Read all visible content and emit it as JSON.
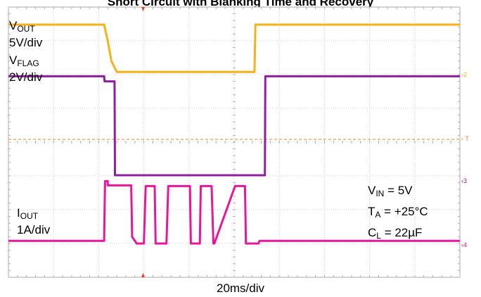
{
  "chart_data": {
    "type": "line",
    "title": "Short Circuit with Blanking Time and Recovery",
    "xlabel": "20ms/div",
    "channels": [
      {
        "name_main": "V",
        "name_sub": "OUT",
        "scale": "5V/div",
        "color": "#f5b21a",
        "marker": "2"
      },
      {
        "name_main": "V",
        "name_sub": "FLAG",
        "scale": "2V/div",
        "color": "#8e1f9e",
        "marker": "3"
      },
      {
        "name_main": "I",
        "name_sub": "OUT",
        "scale": "1A/div",
        "color": "#e8169a",
        "marker": "4"
      }
    ],
    "conditions": [
      {
        "main": "V",
        "sub": "IN",
        "rest": " = 5V"
      },
      {
        "main": "T",
        "sub": "A",
        "rest": " = +25°C"
      },
      {
        "main": "C",
        "sub": "L",
        "rest": " = 22µF"
      }
    ],
    "trigger_marker": "T",
    "grid": true,
    "xlim_div": [
      0,
      10
    ],
    "ylim_div": [
      0,
      8
    ],
    "series": [
      {
        "name": "VOUT",
        "color": "#f5b21a",
        "x": [
          0,
          2.12,
          2.2,
          2.28,
          2.4,
          5.45,
          5.47,
          10
        ],
        "y": [
          7.48,
          7.48,
          7.0,
          6.4,
          6.08,
          6.08,
          7.48,
          7.48
        ]
      },
      {
        "name": "VFLAG",
        "color": "#8e1f9e",
        "x": [
          0,
          2.12,
          2.13,
          2.35,
          2.36,
          5.68,
          5.69,
          10
        ],
        "y": [
          5.95,
          5.95,
          5.8,
          5.8,
          3.02,
          3.02,
          5.95,
          5.95
        ]
      },
      {
        "name": "IOUT",
        "color": "#e8169a",
        "x": [
          0,
          2.12,
          2.14,
          2.2,
          2.2,
          2.72,
          2.74,
          2.84,
          3.0,
          3.04,
          3.06,
          3.24,
          3.26,
          3.5,
          3.54,
          3.56,
          4.02,
          4.04,
          4.24,
          4.26,
          4.5,
          4.54,
          4.56,
          5.02,
          5.04,
          5.24,
          5.26,
          5.54,
          5.56,
          10
        ],
        "y": [
          1.08,
          1.08,
          2.85,
          2.85,
          2.72,
          2.72,
          1.2,
          1.0,
          1.0,
          2.7,
          2.7,
          2.7,
          1.0,
          1.0,
          2.7,
          2.7,
          2.7,
          1.0,
          1.0,
          2.7,
          2.7,
          1.0,
          1.0,
          2.7,
          2.7,
          2.7,
          1.0,
          1.0,
          1.08,
          1.08
        ]
      }
    ]
  }
}
